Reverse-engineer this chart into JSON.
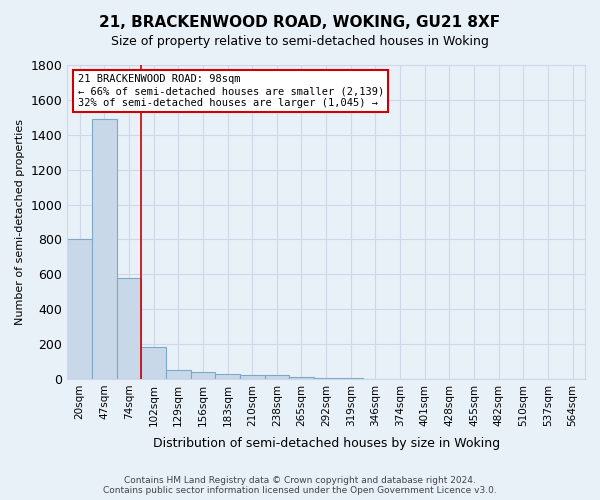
{
  "title_line1": "21, BRACKENWOOD ROAD, WOKING, GU21 8XF",
  "title_line2": "Size of property relative to semi-detached houses in Woking",
  "xlabel": "Distribution of semi-detached houses by size in Woking",
  "ylabel": "Number of semi-detached properties",
  "footer_line1": "Contains HM Land Registry data © Crown copyright and database right 2024.",
  "footer_line2": "Contains public sector information licensed under the Open Government Licence v3.0.",
  "bin_labels": [
    "20sqm",
    "47sqm",
    "74sqm",
    "102sqm",
    "129sqm",
    "156sqm",
    "183sqm",
    "210sqm",
    "238sqm",
    "265sqm",
    "292sqm",
    "319sqm",
    "346sqm",
    "374sqm",
    "401sqm",
    "428sqm",
    "455sqm",
    "482sqm",
    "510sqm",
    "537sqm",
    "564sqm"
  ],
  "bar_values": [
    800,
    1490,
    580,
    185,
    50,
    40,
    30,
    25,
    20,
    10,
    5,
    3,
    2,
    1,
    1,
    0,
    0,
    0,
    0,
    0,
    0
  ],
  "bar_color": "#c8d8e8",
  "bar_edge_color": "#7aaac8",
  "annotation_text_line1": "21 BRACKENWOOD ROAD: 98sqm",
  "annotation_text_line2": "← 66% of semi-detached houses are smaller (2,139)",
  "annotation_text_line3": "32% of semi-detached houses are larger (1,045) →",
  "annotation_box_color": "#ffffff",
  "annotation_box_edge_color": "#cc0000",
  "vline_color": "#cc0000",
  "vline_x": 2.5,
  "ylim": [
    0,
    1800
  ],
  "yticks": [
    0,
    200,
    400,
    600,
    800,
    1000,
    1200,
    1400,
    1600,
    1800
  ],
  "grid_color": "#d0d8e8",
  "background_color": "#e8f0f8"
}
